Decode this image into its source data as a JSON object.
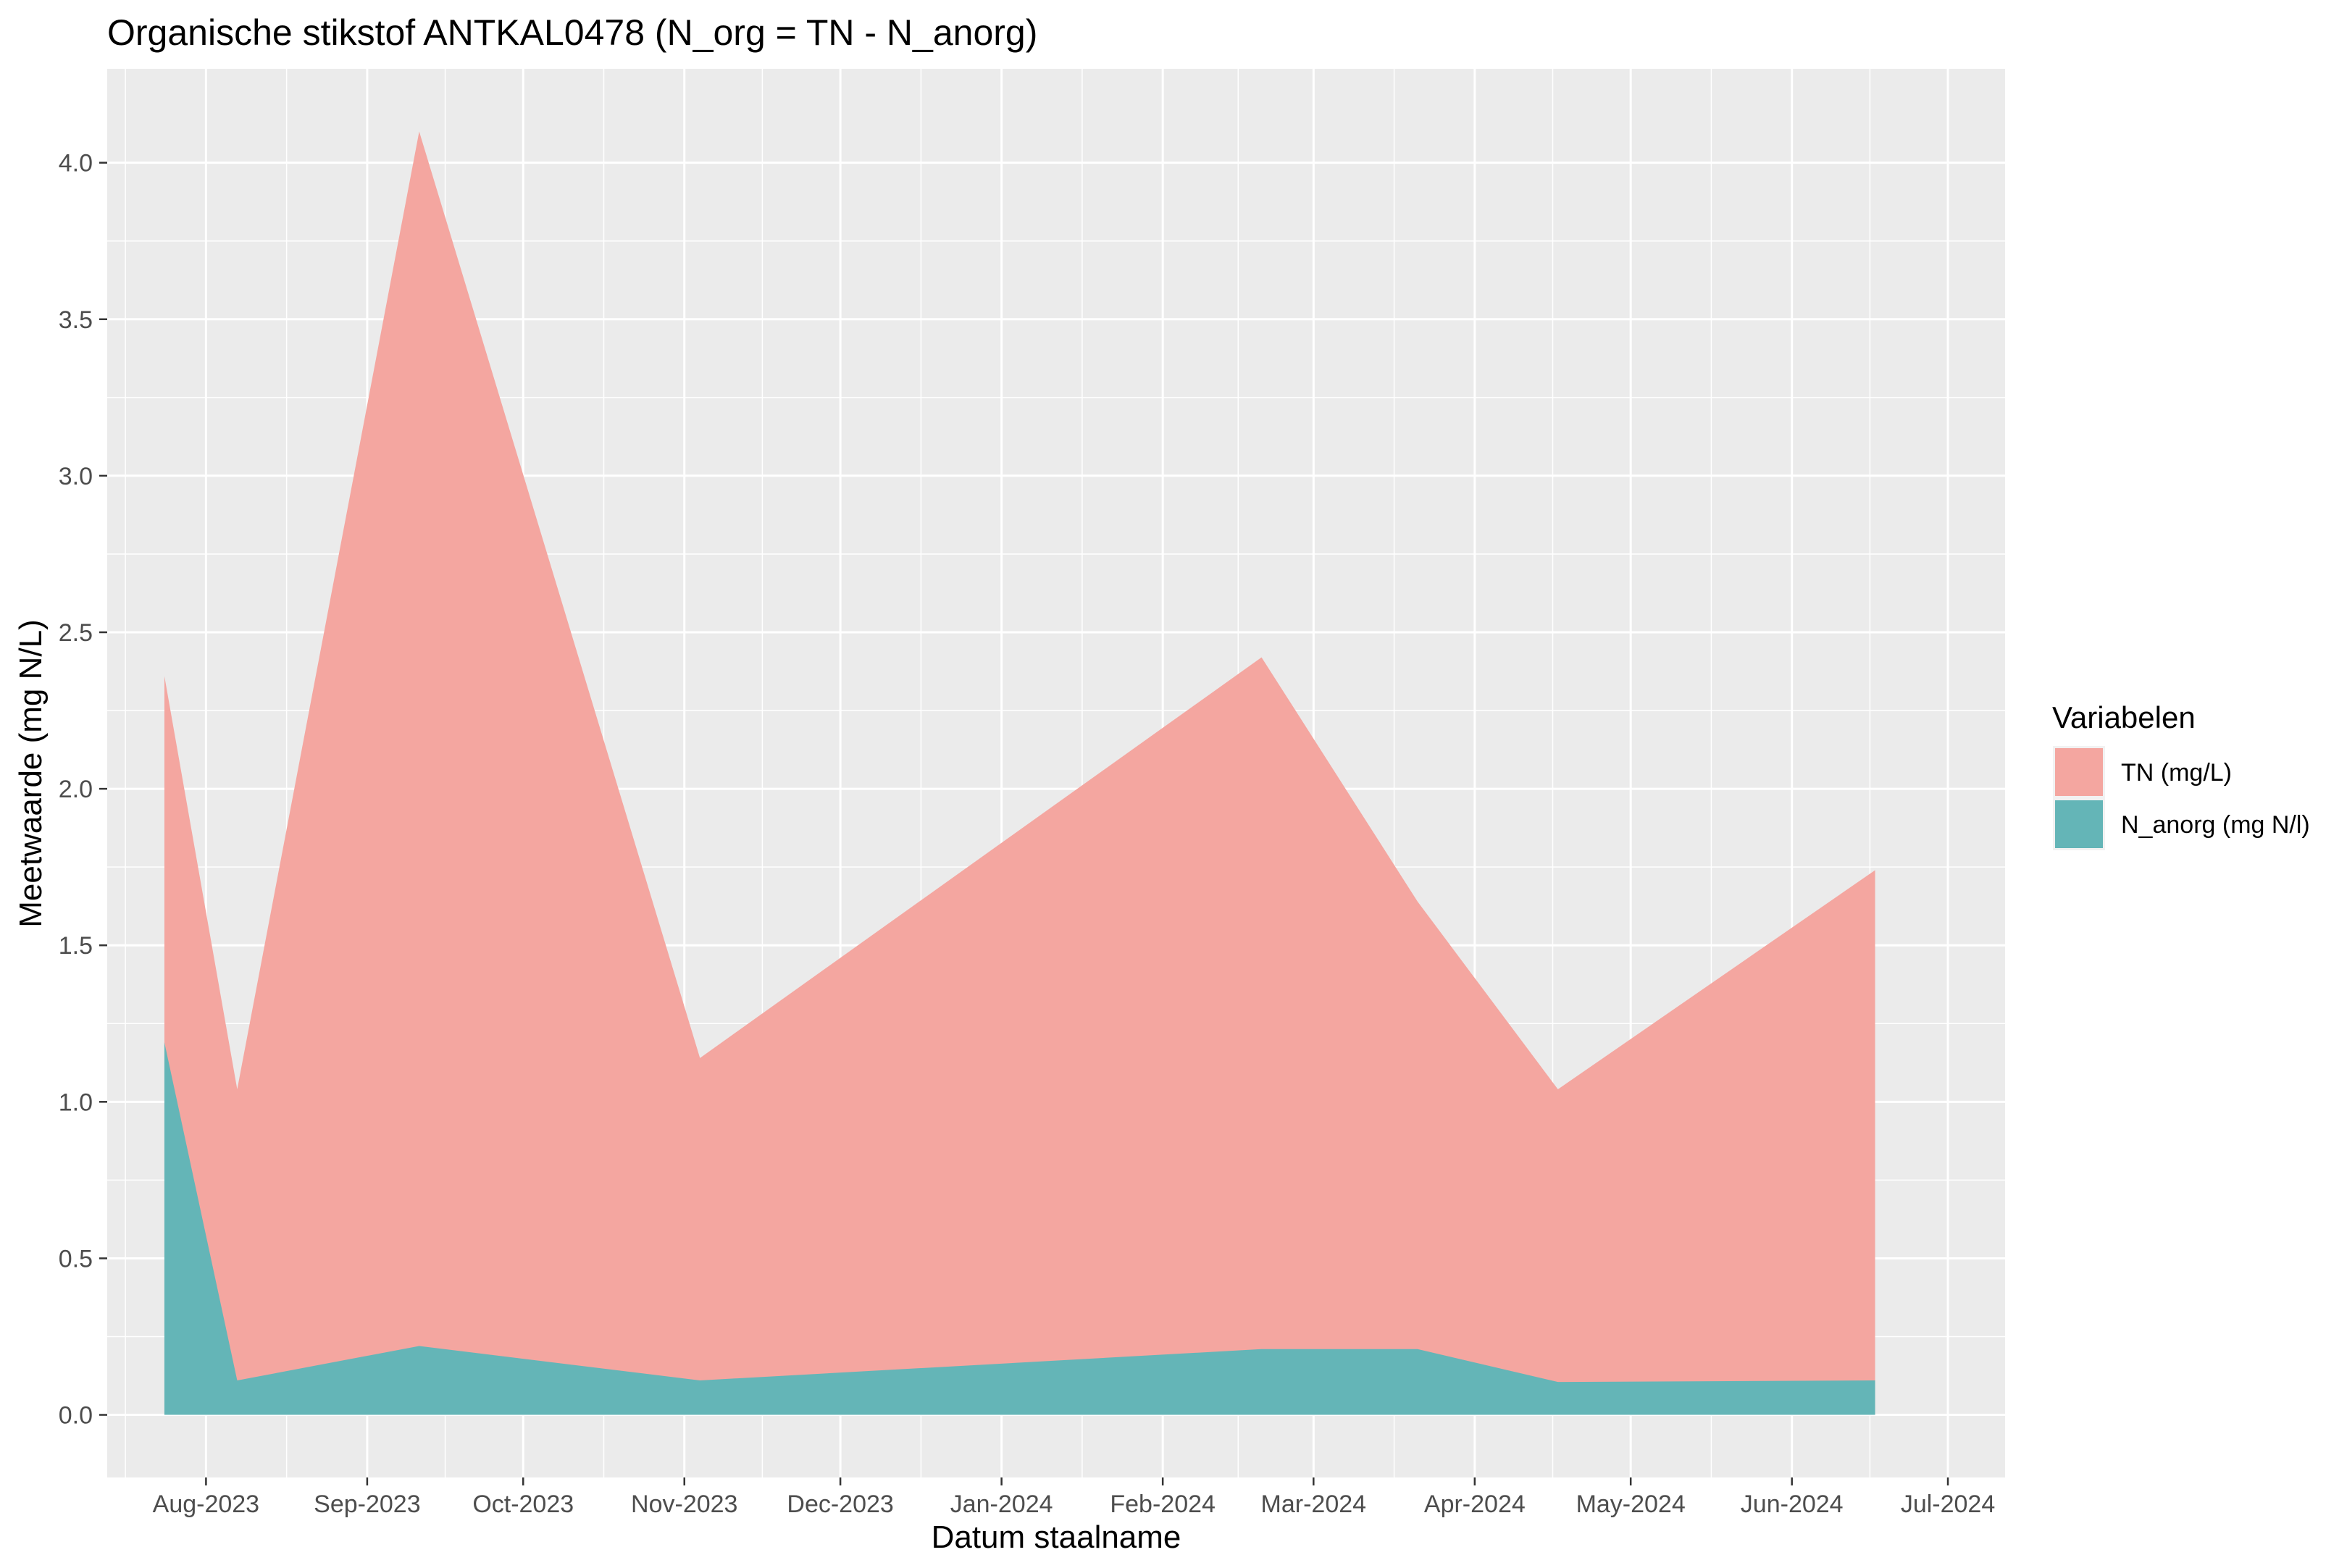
{
  "chart_data": {
    "type": "area",
    "title": "Organische stikstof ANTKAL0478 (N_org = TN - N_anorg)",
    "xlabel": "Datum staalname",
    "ylabel": "Meetwaarde (mg N/L)",
    "x_ticks": [
      "Aug-2023",
      "Sep-2023",
      "Oct-2023",
      "Nov-2023",
      "Dec-2023",
      "Jan-2024",
      "Feb-2024",
      "Mar-2024",
      "Apr-2024",
      "May-2024",
      "Jun-2024",
      "Jul-2024"
    ],
    "x_tick_dates": [
      "2023-08-01",
      "2023-09-01",
      "2023-10-01",
      "2023-11-01",
      "2023-12-01",
      "2024-01-01",
      "2024-02-01",
      "2024-03-01",
      "2024-04-01",
      "2024-05-01",
      "2024-06-01",
      "2024-07-01"
    ],
    "xlim": [
      "2023-07-13",
      "2024-07-12"
    ],
    "y_ticks": [
      "0.0",
      "0.5",
      "1.0",
      "1.5",
      "2.0",
      "2.5",
      "3.0",
      "3.5",
      "4.0"
    ],
    "ylim": [
      -0.2,
      4.3
    ],
    "grid": true,
    "legend": {
      "title": "Variabelen",
      "position": "right"
    },
    "series": [
      {
        "name": "TN (mg/L)",
        "color": "#F8766D",
        "points": [
          {
            "date": "2023-07-24",
            "value": 2.36
          },
          {
            "date": "2023-08-07",
            "value": 1.04
          },
          {
            "date": "2023-09-11",
            "value": 4.1
          },
          {
            "date": "2023-11-04",
            "value": 1.14
          },
          {
            "date": "2024-02-20",
            "value": 2.42
          },
          {
            "date": "2024-03-21",
            "value": 1.64
          },
          {
            "date": "2024-04-17",
            "value": 1.04
          },
          {
            "date": "2024-06-17",
            "value": 1.74
          }
        ]
      },
      {
        "name": "N_anorg (mg N/l)",
        "color": "#00BFC4",
        "points": [
          {
            "date": "2023-07-24",
            "value": 1.19
          },
          {
            "date": "2023-08-07",
            "value": 0.11
          },
          {
            "date": "2023-09-11",
            "value": 0.22
          },
          {
            "date": "2023-11-04",
            "value": 0.11
          },
          {
            "date": "2024-02-20",
            "value": 0.21
          },
          {
            "date": "2024-03-21",
            "value": 0.21
          },
          {
            "date": "2024-04-17",
            "value": 0.105
          },
          {
            "date": "2024-06-17",
            "value": 0.11
          }
        ]
      }
    ]
  }
}
